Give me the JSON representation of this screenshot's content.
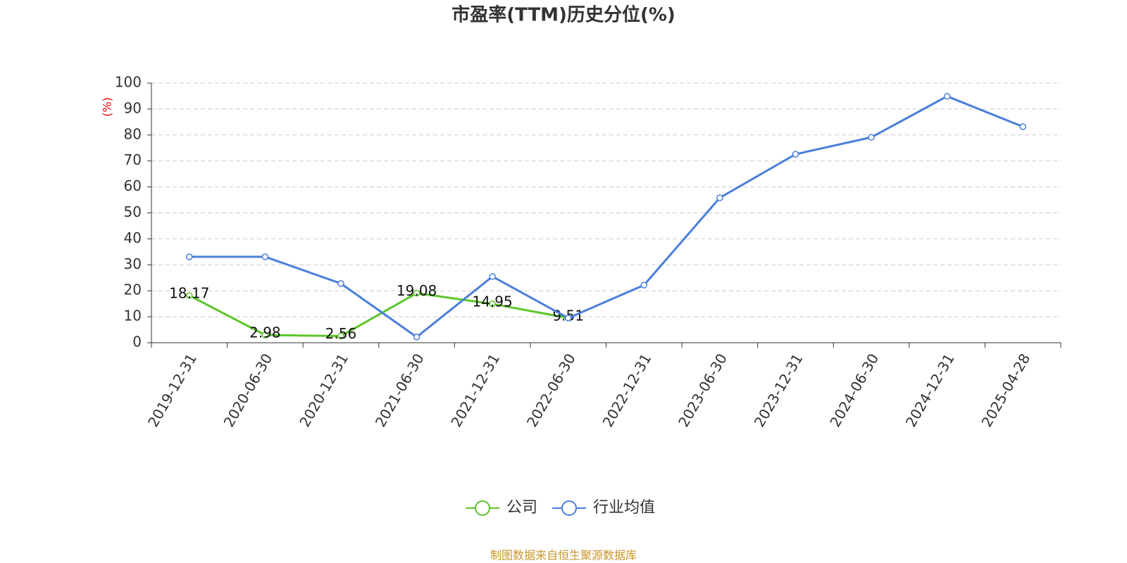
{
  "chart_data": {
    "type": "line",
    "title": "市盈率(TTM)历史分位(%)",
    "y_label": "(%)",
    "categories": [
      "2019-12-31",
      "2020-06-30",
      "2020-12-31",
      "2021-06-30",
      "2021-12-31",
      "2022-06-30",
      "2022-12-31",
      "2023-06-30",
      "2023-12-31",
      "2024-06-30",
      "2024-12-31",
      "2025-04-28"
    ],
    "series": [
      {
        "name": "公司",
        "color": "#5cc52a",
        "show_labels": true,
        "values": [
          18.17,
          2.98,
          2.56,
          19.08,
          14.95,
          9.51,
          null,
          null,
          null,
          null,
          null,
          null
        ]
      },
      {
        "name": "行业均值",
        "color": "#4a7fdb",
        "show_labels": false,
        "values": [
          33.1,
          33.1,
          22.8,
          2.2,
          25.5,
          9.5,
          22.2,
          55.8,
          72.6,
          79.1,
          94.9,
          83.2
        ]
      }
    ],
    "ylim": [
      0,
      100
    ],
    "yticks": [
      0,
      10,
      20,
      30,
      40,
      50,
      60,
      70,
      80,
      90,
      100
    ],
    "grid": true,
    "legend": "bottom",
    "source": "制图数据来自恒生聚源数据库"
  }
}
